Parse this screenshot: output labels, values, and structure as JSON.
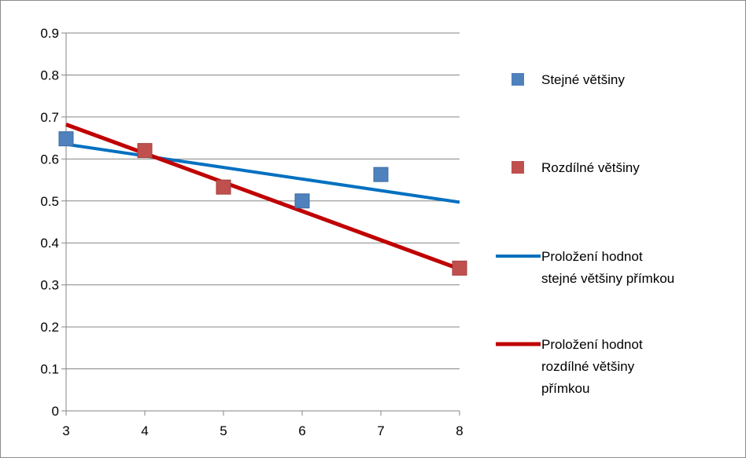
{
  "chart_data": {
    "type": "scatter",
    "x_ticks": [
      "3",
      "4",
      "5",
      "6",
      "7",
      "8"
    ],
    "y_ticks": [
      "0",
      "0.1",
      "0.2",
      "0.3",
      "0.4",
      "0.5",
      "0.6",
      "0.7",
      "0.8",
      "0.9"
    ],
    "xlim": [
      3,
      8
    ],
    "ylim": [
      0,
      0.9
    ],
    "grid": true,
    "legend_position": "right",
    "series": [
      {
        "name": "Stejné většiny",
        "kind": "marker",
        "color": "#4F81BD",
        "points": [
          [
            3,
            0.648
          ],
          [
            6,
            0.5
          ],
          [
            7,
            0.563
          ]
        ]
      },
      {
        "name": "Rozdílné většiny",
        "kind": "marker",
        "color": "#C0504D",
        "points": [
          [
            4,
            0.62
          ],
          [
            5,
            0.533
          ],
          [
            8,
            0.34
          ]
        ]
      },
      {
        "name_lines": [
          "Proložení hodnot",
          "stejné většiny přímkou"
        ],
        "kind": "line",
        "color": "#0070C0",
        "points": [
          [
            3,
            0.635
          ],
          [
            8,
            0.497
          ]
        ]
      },
      {
        "name_lines": [
          "Proložení hodnot",
          "rozdílné většiny",
          "přímkou"
        ],
        "kind": "line",
        "color": "#C00000",
        "points": [
          [
            3,
            0.682
          ],
          [
            8,
            0.338
          ]
        ]
      }
    ]
  }
}
